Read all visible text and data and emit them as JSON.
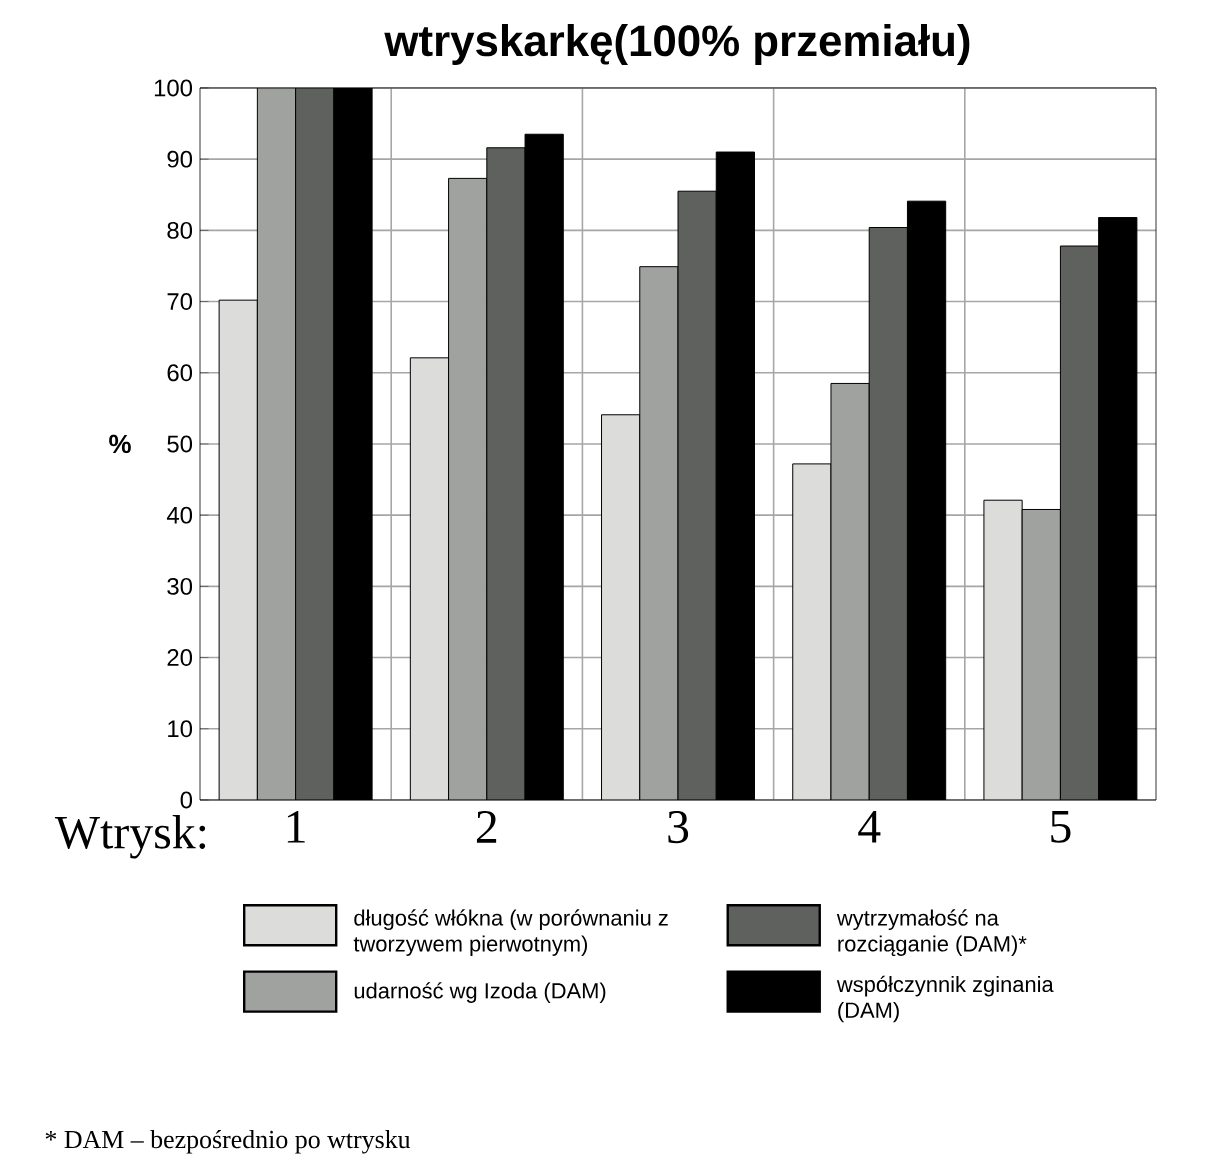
{
  "chart_data": {
    "type": "bar",
    "title": "wtryskarkę(100% przemiału)",
    "xlabel": "Wtrysk:",
    "ylabel": "%",
    "categories": [
      "1",
      "2",
      "3",
      "4",
      "5"
    ],
    "series": [
      {
        "name": "długość włókna (w porównaniu z tworzywem pierwotnym)",
        "color": "#dcdddb",
        "values": [
          70.2,
          62.1,
          54.1,
          47.2,
          42.1
        ]
      },
      {
        "name": "udarność wg Izoda (DAM)",
        "color": "#a0a29f",
        "values": [
          100,
          87.3,
          74.9,
          58.5,
          40.8
        ]
      },
      {
        "name": "wytrzymałość na rozciąganie (DAM)*",
        "color": "#5f615e",
        "values": [
          100,
          91.6,
          85.5,
          80.4,
          77.8
        ]
      },
      {
        "name": "współczynnik zginania (DAM)",
        "color": "#000000",
        "values": [
          100,
          93.5,
          91.0,
          84.1,
          81.8
        ]
      }
    ],
    "ylim": [
      0,
      100
    ],
    "yticks": [
      0,
      10,
      20,
      30,
      40,
      50,
      60,
      70,
      80,
      90,
      100
    ],
    "grid": true,
    "legend": "bottom",
    "annotations": [
      "* DAM – bezpośrednio po wtrysku"
    ]
  }
}
